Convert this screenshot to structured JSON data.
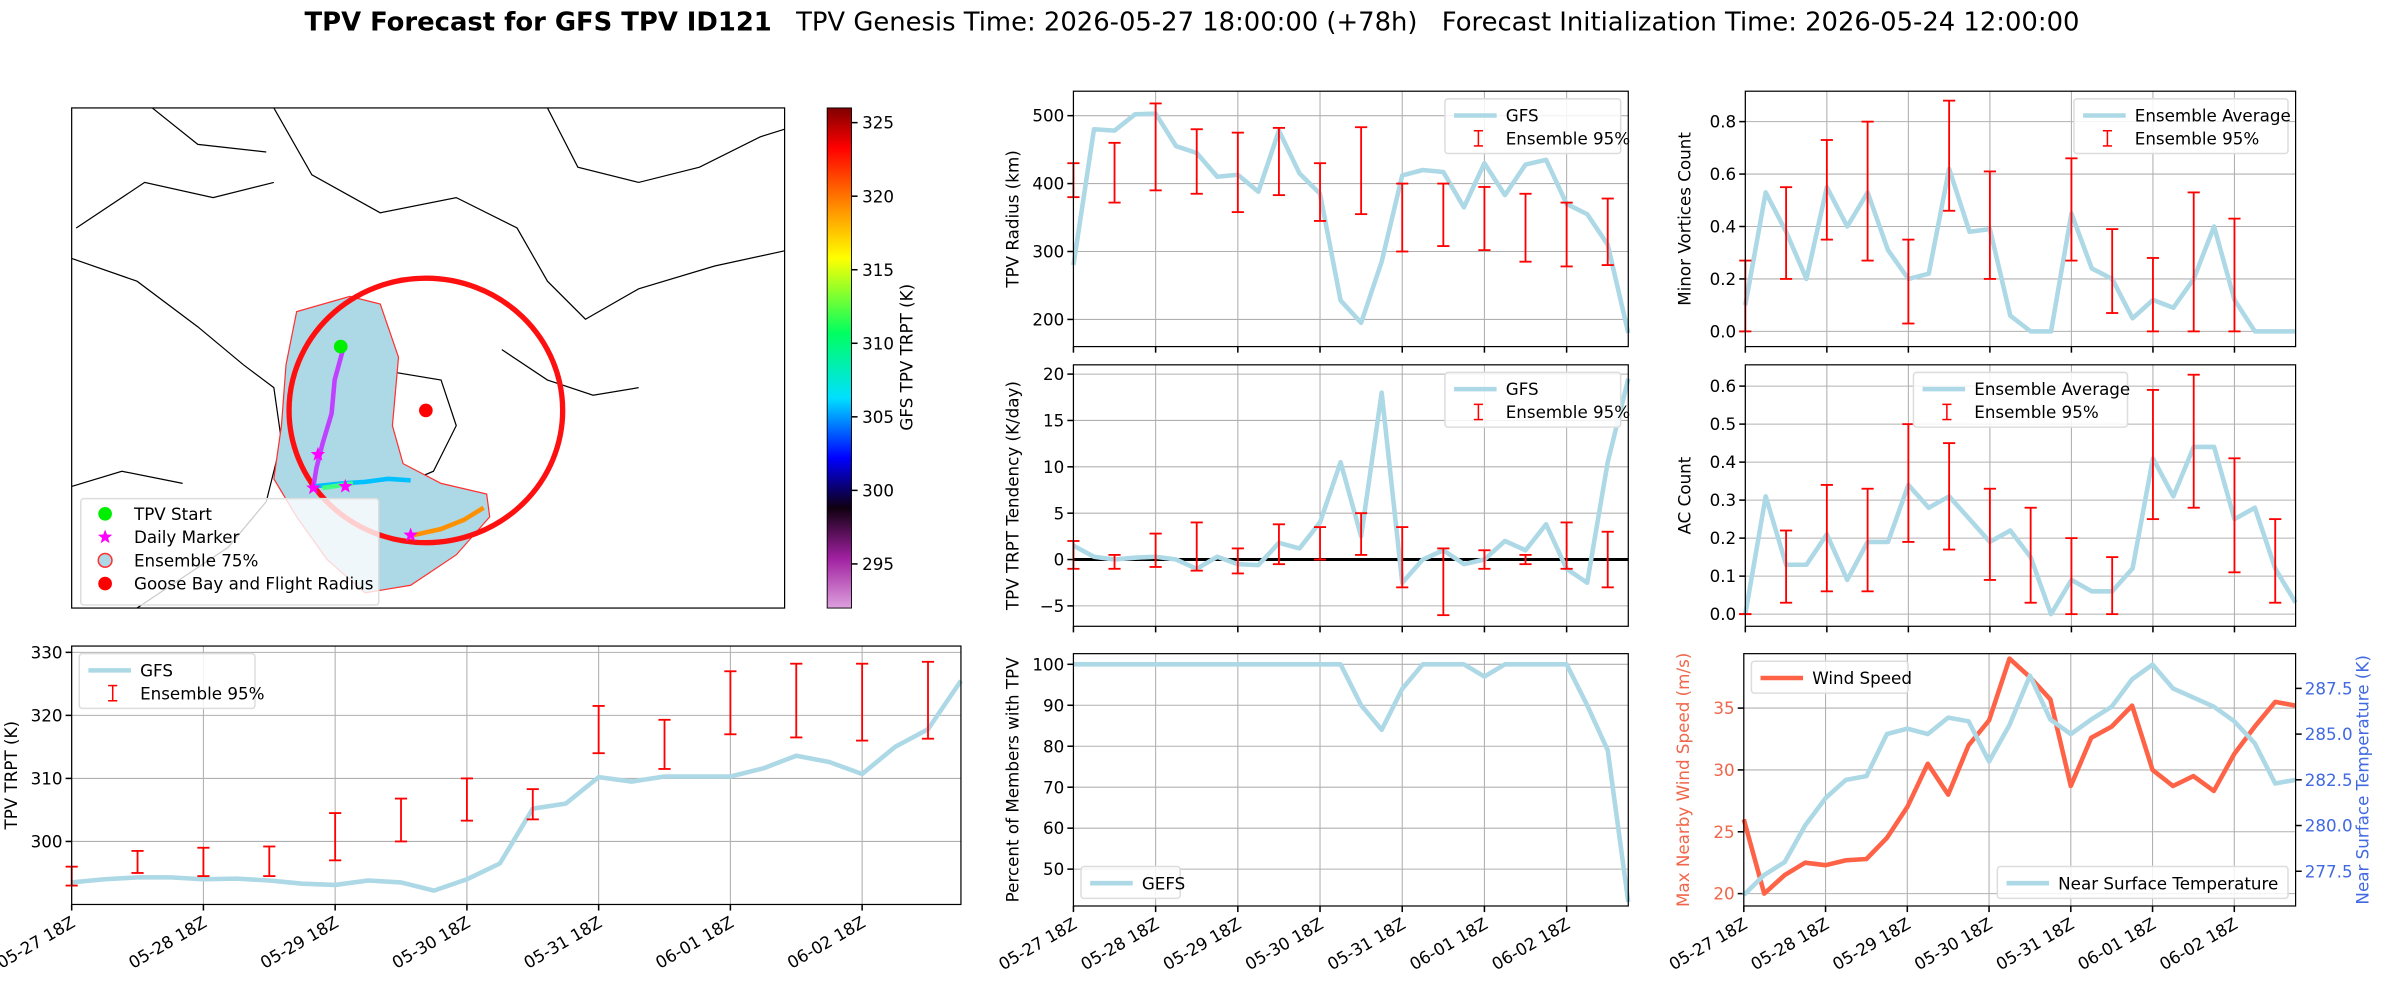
{
  "figure_title": {
    "main": "TPV Forecast for GFS TPV ID121",
    "genesis": "TPV Genesis Time: 2026-05-27 18:00:00 (+78h)",
    "init": "Forecast Initialization Time: 2026-05-24 12:00:00"
  },
  "chart_data": [
    {
      "type": "map",
      "markers": [
        {
          "name": "TPV Start",
          "color": "#00ee00"
        },
        {
          "name": "Daily Marker",
          "color": "#ff00ff"
        },
        {
          "name": "Ensemble 75%",
          "color": "#add8e6"
        },
        {
          "name": "Goose Bay and Flight Radius",
          "color": "#ff0000"
        }
      ],
      "colorbar_label": "GFS TPV TRPT (K)",
      "colorbar_lim": [
        292,
        326
      ],
      "colorbar_ticks": [
        295,
        300,
        305,
        310,
        315,
        320,
        325
      ]
    },
    {
      "type": "line",
      "ylabel": "TPV TRPT (K)",
      "ylim": [
        290,
        331
      ],
      "yticks": [
        300,
        310,
        320,
        330
      ],
      "grid": true,
      "legend": "upper left",
      "categories": [
        "05-27 18Z",
        null,
        null,
        null,
        "05-28 18Z",
        null,
        null,
        null,
        "05-29 18Z",
        null,
        null,
        null,
        "05-30 18Z",
        null,
        null,
        null,
        "05-31 18Z",
        null,
        null,
        null,
        "06-01 18Z",
        null,
        null,
        null,
        "06-02 18Z",
        null,
        null,
        null
      ],
      "series": [
        {
          "name": "GFS",
          "color": "#add8e6",
          "values": [
            293.5,
            294,
            294.3,
            294.3,
            294,
            294.1,
            293.8,
            293.3,
            293.1,
            293.8,
            293.5,
            292.2,
            294,
            296.5,
            305.2,
            306,
            310.2,
            309.5,
            310.3,
            310.3,
            310.3,
            311.6,
            313.6,
            312.6,
            310.7,
            315,
            317.8,
            325.5
          ]
        },
        {
          "name": "Ensemble 95%",
          "type": "errorbar",
          "color": "#ff0000",
          "low": [
            293,
            null,
            295,
            null,
            294.5,
            null,
            294.5,
            null,
            297,
            null,
            300,
            null,
            303.3,
            null,
            303.5,
            null,
            314,
            null,
            311.5,
            null,
            317,
            null,
            316.5,
            null,
            316,
            null,
            316.3,
            null
          ],
          "high": [
            296,
            null,
            298.5,
            null,
            299,
            null,
            299.2,
            null,
            304.5,
            null,
            306.8,
            null,
            310,
            null,
            308.3,
            null,
            321.5,
            null,
            319.3,
            null,
            327,
            null,
            328.2,
            null,
            328.2,
            null,
            328.5,
            null
          ]
        }
      ]
    },
    {
      "type": "line",
      "ylabel": "TPV Radius (km)",
      "ylim": [
        160,
        536
      ],
      "yticks": [
        200,
        300,
        400,
        500
      ],
      "grid": true,
      "legend": "upper right",
      "series": [
        {
          "name": "GFS",
          "color": "#add8e6",
          "values": [
            280,
            480,
            478,
            502,
            503,
            455,
            445,
            410,
            413,
            388,
            478,
            415,
            385,
            228,
            195,
            285,
            412,
            420,
            417,
            365,
            430,
            383,
            428,
            435,
            370,
            355,
            310,
            180
          ]
        },
        {
          "name": "Ensemble 95%",
          "type": "errorbar",
          "color": "#ff0000",
          "low": [
            380,
            null,
            372,
            null,
            390,
            null,
            385,
            null,
            358,
            null,
            383,
            null,
            345,
            null,
            355,
            null,
            300,
            null,
            308,
            null,
            302,
            null,
            285,
            null,
            278,
            null,
            280,
            null
          ],
          "high": [
            430,
            null,
            460,
            null,
            518,
            null,
            480,
            null,
            475,
            null,
            482,
            null,
            430,
            null,
            483,
            null,
            400,
            null,
            400,
            null,
            395,
            null,
            385,
            null,
            372,
            null,
            378,
            null
          ]
        }
      ]
    },
    {
      "type": "line",
      "ylabel": "TPV TRPT Tendency (K/day)",
      "ylim": [
        -7.2,
        21
      ],
      "yticks": [
        {
          "value": -5,
          "label": "−5"
        },
        0,
        5,
        10,
        15,
        20
      ],
      "grid": true,
      "legend": "upper right",
      "hline": 0,
      "series": [
        {
          "name": "GFS",
          "color": "#add8e6",
          "values": [
            1.5,
            0.3,
            0,
            0.2,
            0.3,
            0,
            -1,
            0.3,
            -0.5,
            -0.6,
            1.8,
            1.2,
            4,
            10.5,
            2.5,
            18,
            -2.5,
            0,
            1,
            -0.5,
            0,
            2,
            1,
            3.8,
            -1,
            -2.5,
            10.5,
            19.5
          ]
        },
        {
          "name": "Ensemble 95%",
          "type": "errorbar",
          "color": "#ff0000",
          "low": [
            -1,
            null,
            -1,
            null,
            -0.8,
            null,
            -1.2,
            null,
            -1.5,
            null,
            -0.5,
            null,
            0,
            null,
            0.5,
            null,
            -3,
            null,
            -6,
            null,
            -1,
            null,
            -0.5,
            null,
            -1,
            null,
            -3,
            null
          ],
          "high": [
            2,
            null,
            0.5,
            null,
            2.8,
            null,
            4,
            null,
            1.2,
            null,
            3.8,
            null,
            3.5,
            null,
            5,
            null,
            3.5,
            null,
            1.2,
            null,
            1,
            null,
            0.5,
            null,
            4,
            null,
            3,
            null
          ]
        }
      ]
    },
    {
      "type": "line",
      "ylabel": "Percent of Members with TPV",
      "ylim": [
        41,
        102.6
      ],
      "yticks": [
        50,
        60,
        70,
        80,
        90,
        100
      ],
      "grid": true,
      "legend": "lower left",
      "categories": [
        "05-27 18Z",
        null,
        null,
        null,
        "05-28 18Z",
        null,
        null,
        null,
        "05-29 18Z",
        null,
        null,
        null,
        "05-30 18Z",
        null,
        null,
        null,
        "05-31 18Z",
        null,
        null,
        null,
        "06-01 18Z",
        null,
        null,
        null,
        "06-02 18Z",
        null,
        null,
        null
      ],
      "series": [
        {
          "name": "GEFS",
          "color": "#add8e6",
          "values": [
            100,
            100,
            100,
            100,
            100,
            100,
            100,
            100,
            100,
            100,
            100,
            100,
            100,
            100,
            90,
            84,
            94,
            100,
            100,
            100,
            97,
            100,
            100,
            100,
            100,
            90,
            79,
            42
          ]
        }
      ]
    },
    {
      "type": "line",
      "ylabel": "Minor Vortices Count",
      "ylim": [
        -0.058,
        0.916
      ],
      "yticks": [
        {
          "value": 0,
          "label": "0.0"
        },
        0.2,
        0.4,
        0.6,
        0.8
      ],
      "grid": true,
      "legend": "upper right",
      "series": [
        {
          "name": "Ensemble Average",
          "color": "#add8e6",
          "values": [
            0.1,
            0.53,
            0.38,
            0.2,
            0.55,
            0.4,
            0.53,
            0.31,
            0.2,
            0.22,
            0.62,
            0.38,
            0.39,
            0.06,
            0,
            0,
            0.45,
            0.24,
            0.2,
            0.05,
            0.12,
            0.09,
            0.2,
            0.4,
            0.12,
            0,
            0,
            0
          ]
        },
        {
          "name": "Ensemble 95%",
          "type": "errorbar",
          "color": "#ff0000",
          "low": [
            0,
            null,
            0.2,
            null,
            0.35,
            null,
            0.27,
            null,
            0.03,
            null,
            0.46,
            null,
            0.2,
            null,
            null,
            null,
            0.27,
            null,
            0.07,
            null,
            0,
            null,
            0,
            null,
            0,
            null,
            null,
            null
          ],
          "high": [
            0.27,
            null,
            0.55,
            null,
            0.73,
            null,
            0.8,
            null,
            0.35,
            null,
            0.88,
            null,
            0.61,
            null,
            null,
            null,
            0.66,
            null,
            0.39,
            null,
            0.28,
            null,
            0.53,
            null,
            0.43,
            null,
            null,
            null
          ]
        }
      ]
    },
    {
      "type": "line",
      "ylabel": "AC Count",
      "ylim": [
        -0.032,
        0.656
      ],
      "yticks": [
        {
          "value": 0,
          "label": "0.0"
        },
        0.1,
        0.2,
        0.3,
        0.4,
        0.5,
        0.6
      ],
      "grid": true,
      "legend": "upper center",
      "series": [
        {
          "name": "Ensemble Average",
          "color": "#add8e6",
          "values": [
            0,
            0.31,
            0.13,
            0.13,
            0.21,
            0.09,
            0.19,
            0.19,
            0.34,
            0.28,
            0.31,
            0.25,
            0.19,
            0.22,
            0.15,
            0,
            0.09,
            0.06,
            0.06,
            0.12,
            0.41,
            0.31,
            0.44,
            0.44,
            0.25,
            0.28,
            0.12,
            0.03
          ]
        },
        {
          "name": "Ensemble 95%",
          "type": "errorbar",
          "color": "#ff0000",
          "low": [
            0,
            null,
            0.03,
            null,
            0.06,
            null,
            0.06,
            null,
            0.19,
            null,
            0.17,
            null,
            0.09,
            null,
            0.03,
            null,
            0,
            null,
            0,
            null,
            0.25,
            null,
            0.28,
            null,
            0.11,
            null,
            0.03,
            null
          ],
          "high": [
            0,
            null,
            0.22,
            null,
            0.34,
            null,
            0.33,
            null,
            0.5,
            null,
            0.45,
            null,
            0.33,
            null,
            0.28,
            null,
            0.2,
            null,
            0.15,
            null,
            0.59,
            null,
            0.63,
            null,
            0.41,
            null,
            0.25,
            null
          ]
        }
      ]
    },
    {
      "type": "line",
      "ylabel": "Max Nearby Wind Speed (m/s)",
      "ylabel_color": "#f0664a",
      "y2label": "Near Surface Temperature (K)",
      "y2label_color": "#4169e1",
      "ylim": [
        19,
        39.4
      ],
      "yticks": [
        20,
        25,
        30,
        35
      ],
      "y2lim": [
        275.6,
        289.4
      ],
      "y2ticks": [
        277.5,
        {
          "value": 280,
          "label": "280.0"
        },
        282.5,
        {
          "value": 285,
          "label": "285.0"
        },
        287.5
      ],
      "grid": true,
      "legend": "upper left",
      "legend2": "lower right",
      "categories": [
        "05-27 18Z",
        null,
        null,
        null,
        "05-28 18Z",
        null,
        null,
        null,
        "05-29 18Z",
        null,
        null,
        null,
        "05-30 18Z",
        null,
        null,
        null,
        "05-31 18Z",
        null,
        null,
        null,
        "06-01 18Z",
        null,
        null,
        null,
        "06-02 18Z",
        null,
        null,
        null
      ],
      "series": [
        {
          "name": "Wind Speed",
          "color": "#ff6347",
          "values": [
            26,
            20,
            21.5,
            22.5,
            22.3,
            22.7,
            22.8,
            24.5,
            27,
            30.5,
            28,
            32,
            34,
            39,
            37.5,
            35.7,
            28.7,
            32.6,
            33.5,
            35.2,
            30,
            28.7,
            29.5,
            28.3,
            31.3,
            33.5,
            35.5,
            35.2
          ]
        },
        {
          "name": "Near Surface Temperature",
          "color": "#add8e6",
          "axis": "y2",
          "values": [
            276.2,
            277.3,
            278,
            280,
            281.5,
            282.5,
            282.7,
            285,
            285.3,
            285,
            285.9,
            285.7,
            283.5,
            285.5,
            288.2,
            285.8,
            285,
            285.8,
            286.5,
            288,
            288.8,
            287.5,
            287,
            286.5,
            285.7,
            284.5,
            282.3,
            282.5
          ]
        }
      ]
    }
  ]
}
